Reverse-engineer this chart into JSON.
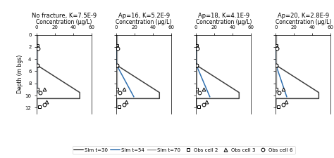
{
  "titles": [
    "No fracture, K=7.5E-9",
    "Ap=16, K=5.2E-9",
    "Ap=18, K=4.1E-9",
    "Ap=20, K=2.8E-9"
  ],
  "xlabel": "Concentration (μg/L)",
  "ylabel": "Depth (m bgs)",
  "xlim": [
    0,
    60
  ],
  "ylim": [
    13,
    0
  ],
  "xticks": [
    0,
    20,
    40,
    60
  ],
  "yticks": [
    0,
    2,
    4,
    6,
    8,
    10,
    12
  ],
  "sim_t30": {
    "color": "#3f3f3f",
    "lw": 1.1,
    "label": "Sim t=30",
    "profiles": [
      {
        "depth": [
          0,
          2.0,
          5.0,
          9.5,
          10.5,
          10.5,
          12.0
        ],
        "conc": [
          0.3,
          0.3,
          0.3,
          47,
          47,
          0.3,
          0.3
        ]
      },
      {
        "depth": [
          0,
          2.0,
          5.0,
          9.5,
          10.5,
          10.5,
          12.0
        ],
        "conc": [
          0.3,
          0.3,
          0.3,
          47,
          47,
          0.3,
          0.3
        ]
      },
      {
        "depth": [
          0,
          2.0,
          5.0,
          9.5,
          10.5,
          10.5,
          12.0
        ],
        "conc": [
          0.3,
          0.3,
          0.3,
          47,
          47,
          0.3,
          0.3
        ]
      },
      {
        "depth": [
          0,
          2.0,
          5.0,
          9.5,
          10.5,
          10.5,
          12.0
        ],
        "conc": [
          0.3,
          0.3,
          0.3,
          47,
          47,
          0.3,
          0.3
        ]
      }
    ]
  },
  "sim_t54": {
    "color": "#3070b0",
    "lw": 1.1,
    "label": "Sim t=54",
    "profiles": [
      {
        "depth": [
          2.0,
          5.0,
          9.5
        ],
        "conc": [
          0.3,
          0.3,
          0.3
        ]
      },
      {
        "depth": [
          2.0,
          5.0,
          10.2
        ],
        "conc": [
          0.3,
          0.3,
          19
        ]
      },
      {
        "depth": [
          2.0,
          5.0,
          10.2
        ],
        "conc": [
          0.3,
          0.3,
          15
        ]
      },
      {
        "depth": [
          2.0,
          5.0,
          10.2
        ],
        "conc": [
          0.3,
          0.3,
          12
        ]
      }
    ]
  },
  "sim_t70": {
    "color": "#999999",
    "lw": 1.0,
    "label": "Sim t=70",
    "profiles": [
      {
        "depth": [
          0,
          2.0,
          5.0,
          9.5
        ],
        "conc": [
          0.3,
          0.3,
          0.3,
          0.3
        ]
      },
      {
        "depth": [
          0,
          2.0,
          5.0,
          9.5
        ],
        "conc": [
          0.3,
          0.3,
          0.3,
          0.3
        ]
      },
      {
        "depth": [
          0,
          2.0,
          5.0,
          9.5
        ],
        "conc": [
          0.3,
          0.3,
          0.3,
          0.3
        ]
      },
      {
        "depth": [
          0,
          2.0,
          5.0,
          9.5
        ],
        "conc": [
          0.3,
          0.3,
          0.3,
          0.3
        ]
      }
    ]
  },
  "obs_cell2": {
    "marker": "s",
    "ms": 3.5,
    "mew": 0.7,
    "label": "Obs cell 2",
    "depths": [
      1.8,
      5.0,
      9.0,
      11.8
    ],
    "concs": [
      0.5,
      0.5,
      0.5,
      3.0
    ]
  },
  "obs_cell3": {
    "marker": "^",
    "ms": 3.5,
    "mew": 0.7,
    "label": "Obs cell 3",
    "depths": [
      2.0,
      5.0,
      9.0,
      11.0
    ],
    "concs": [
      1.0,
      0.5,
      8.0,
      11.0
    ]
  },
  "obs_cell6": {
    "marker": "o",
    "ms": 3.5,
    "mew": 0.7,
    "label": "Obs cell 6",
    "depths": [
      2.2,
      5.0,
      9.5,
      11.5
    ],
    "concs": [
      1.5,
      0.5,
      4.0,
      8.5
    ]
  },
  "figsize": [
    4.74,
    2.25
  ],
  "dpi": 100,
  "title_fontsize": 6.0,
  "axis_label_fontsize": 5.5,
  "tick_fontsize": 5.0,
  "legend_fontsize": 5.0,
  "background_color": "#f0f0f0"
}
